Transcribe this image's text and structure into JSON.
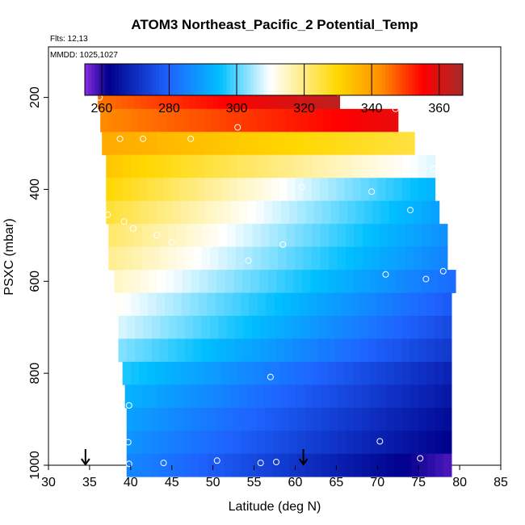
{
  "chart_data": {
    "type": "heatmap",
    "title": "ATOM3 Northeast_Pacific_2 Potential_Temp",
    "subtitle_lines": [
      "Flts: 12,13",
      "MMDD: 1025,1027"
    ],
    "xlabel": "Latitude (deg N)",
    "ylabel": "PSXC (mbar)",
    "xlim": [
      30,
      85
    ],
    "ylim": [
      1000,
      90
    ],
    "y_reversed": true,
    "x_ticks": [
      30,
      35,
      40,
      45,
      50,
      55,
      60,
      65,
      70,
      75,
      80,
      85
    ],
    "y_ticks": [
      200,
      400,
      600,
      800,
      1000
    ],
    "grid": false,
    "legend": "top",
    "colorbar": {
      "min": 255,
      "max": 367,
      "ticks": [
        260,
        280,
        300,
        320,
        340,
        360
      ],
      "colors": [
        "#8a2be2",
        "#00008b",
        "#1e64ff",
        "#00bfff",
        "#ffffff",
        "#ffd700",
        "#ff8c00",
        "#ff0000",
        "#a52a2a"
      ],
      "color_stops": [
        255,
        262,
        280,
        295,
        310,
        330,
        343,
        355,
        367
      ]
    },
    "layers": [
      {
        "p": 200,
        "x_start": 36,
        "x_end": 65.4,
        "v_start": 345,
        "v_end": 364
      },
      {
        "p": 250,
        "x_start": 36.3,
        "x_end": 72.5,
        "v_start": 343,
        "v_end": 358
      },
      {
        "p": 300,
        "x_start": 36.5,
        "x_end": 74.5,
        "v_start": 338,
        "v_end": 325
      },
      {
        "p": 350,
        "x_start": 37,
        "x_end": 77,
        "v_start": 333,
        "v_end": 308
      },
      {
        "p": 400,
        "x_start": 37,
        "x_end": 77,
        "v_start": 330,
        "v_end": 293
      },
      {
        "p": 450,
        "x_start": 37,
        "x_end": 77.5,
        "v_start": 326,
        "v_end": 290
      },
      {
        "p": 500,
        "x_start": 37.3,
        "x_end": 78.5,
        "v_start": 322,
        "v_end": 287
      },
      {
        "p": 550,
        "x_start": 37.3,
        "x_end": 78.5,
        "v_start": 319,
        "v_end": 285
      },
      {
        "p": 600,
        "x_start": 38,
        "x_end": 79.5,
        "v_start": 315,
        "v_end": 281
      },
      {
        "p": 650,
        "x_start": 38,
        "x_end": 79,
        "v_start": 311,
        "v_end": 278
      },
      {
        "p": 700,
        "x_start": 38.5,
        "x_end": 79,
        "v_start": 308,
        "v_end": 275
      },
      {
        "p": 750,
        "x_start": 38.5,
        "x_end": 79,
        "v_start": 303,
        "v_end": 272
      },
      {
        "p": 800,
        "x_start": 39,
        "x_end": 79,
        "v_start": 297,
        "v_end": 268
      },
      {
        "p": 850,
        "x_start": 39.3,
        "x_end": 79,
        "v_start": 293,
        "v_end": 266
      },
      {
        "p": 900,
        "x_start": 39.5,
        "x_end": 79,
        "v_start": 290,
        "v_end": 264
      },
      {
        "p": 950,
        "x_start": 39.5,
        "x_end": 79,
        "v_start": 288,
        "v_end": 262
      },
      {
        "p": 1000,
        "x_start": 39.5,
        "x_end": 79,
        "v_start": 286,
        "v_end": 258
      }
    ],
    "points": [
      {
        "x": 36.2,
        "y": 200
      },
      {
        "x": 65.2,
        "y": 190
      },
      {
        "x": 72.2,
        "y": 225
      },
      {
        "x": 38.7,
        "y": 290
      },
      {
        "x": 41.5,
        "y": 290
      },
      {
        "x": 47.3,
        "y": 290
      },
      {
        "x": 53.0,
        "y": 265
      },
      {
        "x": 76.8,
        "y": 355
      },
      {
        "x": 60.8,
        "y": 395
      },
      {
        "x": 69.3,
        "y": 405
      },
      {
        "x": 37.2,
        "y": 455
      },
      {
        "x": 39.2,
        "y": 470
      },
      {
        "x": 40.3,
        "y": 485
      },
      {
        "x": 43.2,
        "y": 500
      },
      {
        "x": 45.0,
        "y": 515
      },
      {
        "x": 49.5,
        "y": 520
      },
      {
        "x": 54.3,
        "y": 555
      },
      {
        "x": 58.5,
        "y": 520
      },
      {
        "x": 74.0,
        "y": 445
      },
      {
        "x": 71.0,
        "y": 585
      },
      {
        "x": 75.9,
        "y": 595
      },
      {
        "x": 78.0,
        "y": 578
      },
      {
        "x": 57.0,
        "y": 808
      },
      {
        "x": 39.8,
        "y": 870
      },
      {
        "x": 39.7,
        "y": 950
      },
      {
        "x": 70.3,
        "y": 948
      },
      {
        "x": 39.8,
        "y": 997
      },
      {
        "x": 44.0,
        "y": 995
      },
      {
        "x": 50.5,
        "y": 990
      },
      {
        "x": 55.8,
        "y": 995
      },
      {
        "x": 57.7,
        "y": 993
      },
      {
        "x": 75.2,
        "y": 985
      }
    ],
    "arrows_at_latitude": [
      34.5,
      61.0
    ]
  }
}
